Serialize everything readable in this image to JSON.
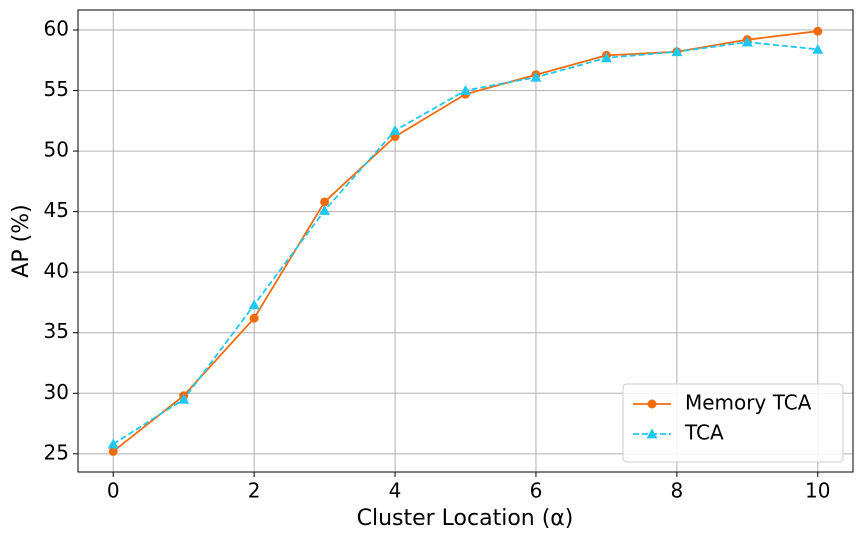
{
  "chart_data": {
    "type": "line",
    "xlabel": "Cluster Location (α)",
    "ylabel": "AP (%)",
    "x": [
      0,
      1,
      2,
      3,
      4,
      5,
      6,
      7,
      8,
      9,
      10
    ],
    "series": [
      {
        "name": "Memory TCA",
        "color": "#f26b0f",
        "marker": "circle",
        "linestyle": "solid",
        "values": [
          25.2,
          29.8,
          36.2,
          45.8,
          51.2,
          54.7,
          56.3,
          57.9,
          58.2,
          59.2,
          59.9
        ]
      },
      {
        "name": "TCA",
        "color": "#1ec8f0",
        "marker": "triangle",
        "linestyle": "dashed",
        "values": [
          25.8,
          29.5,
          37.3,
          45.1,
          51.7,
          55.0,
          56.1,
          57.7,
          58.2,
          59.0,
          58.4
        ]
      }
    ],
    "xlim": [
      -0.5,
      10.5
    ],
    "xticks": [
      0,
      2,
      4,
      6,
      8,
      10
    ],
    "ylim": [
      23.5,
      61.65
    ],
    "yticks": [
      25,
      30,
      35,
      40,
      45,
      50,
      55,
      60
    ],
    "grid": true,
    "legend": "lower right"
  }
}
